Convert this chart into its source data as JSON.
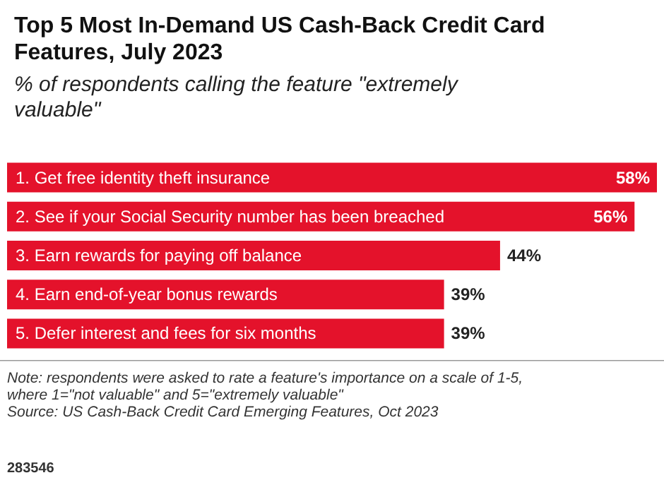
{
  "chart_data": {
    "type": "bar",
    "orientation": "horizontal",
    "title": "Top 5 Most In-Demand US Cash-Back Credit Card Features, July 2023",
    "subtitle": "% of respondents calling the feature \"extremely valuable\"",
    "categories": [
      "1. Get free identity theft insurance",
      "2. See if your Social Security number has been breached",
      "3. Earn rewards for paying off balance",
      "4. Earn end-of-year bonus rewards",
      "5. Defer interest and fees for six months"
    ],
    "values": [
      58,
      56,
      44,
      39,
      39
    ],
    "color": "#e4122b",
    "value_labels": [
      "58%",
      "56%",
      "44%",
      "39%",
      "39%"
    ],
    "annotations": [
      "Note: respondents were asked to rate a feature's importance on a scale of 1-5, where 1=\"not valuable\" and 5=\"extremely valuable\"",
      "Source: US Cash-Back Credit Card Emerging Features, Oct 2023",
      "283546"
    ]
  }
}
